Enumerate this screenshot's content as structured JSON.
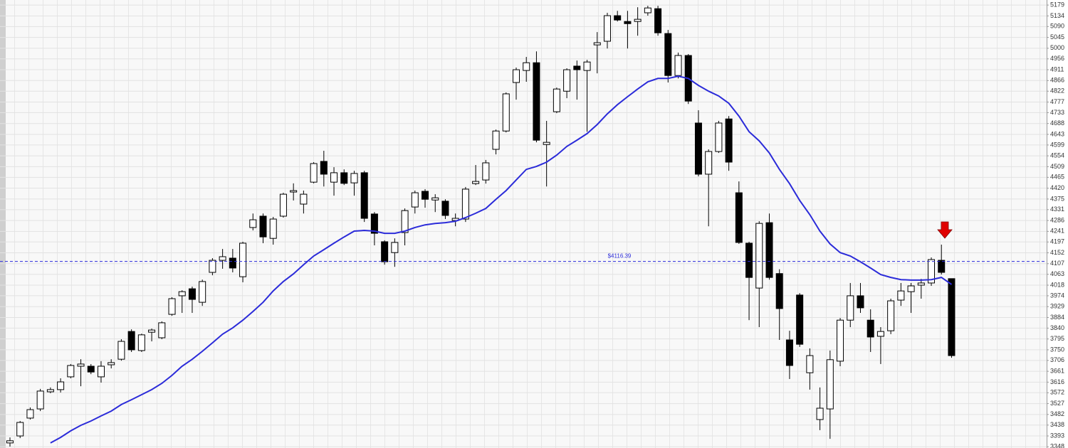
{
  "chart_data": {
    "type": "candlestick",
    "ylim": [
      3343,
      5200
    ],
    "yticks": [
      5179,
      5134,
      5090,
      5045,
      5000,
      4956,
      4911,
      4866,
      4822,
      4777,
      4733,
      4688,
      4643,
      4599,
      4554,
      4509,
      4465,
      4420,
      4375,
      4331,
      4286,
      4241,
      4197,
      4152,
      4107,
      4063,
      4018,
      3974,
      3929,
      3884,
      3840,
      3795,
      3750,
      3706,
      3661,
      3616,
      3572,
      3527,
      3482,
      3438,
      3393,
      3348
    ],
    "grid": true,
    "up_color": "#ffffff",
    "down_color": "#000000",
    "ma_color": "#2b2bd9",
    "open": [
      3364,
      3393,
      3467,
      3505,
      3576,
      3585,
      3638,
      3682,
      3682,
      3638,
      3688,
      3711,
      3826,
      3747,
      3823,
      3800,
      3897,
      3974,
      4003,
      3947,
      4071,
      4121,
      4130,
      4053,
      4257,
      4304,
      4212,
      4304,
      4404,
      4354,
      4445,
      4531,
      4445,
      4484,
      4442,
      4484,
      4313,
      4198,
      4153,
      4236,
      4342,
      4407,
      4371,
      4366,
      4286,
      4292,
      4439,
      4454,
      4581,
      4657,
      4858,
      4908,
      4940,
      4601,
      4737,
      4822,
      4926,
      4908,
      5014,
      5029,
      5135,
      5111,
      5111,
      5147,
      5164,
      5061,
      4887,
      4970,
      4690,
      4478,
      4572,
      4707,
      4401,
      4192,
      4006,
      4277,
      4066,
      3791,
      3977,
      3655,
      3461,
      3505,
      3703,
      3873,
      3974,
      3873,
      3806,
      3829,
      3956,
      3991,
      4018,
      4027,
      4121,
      4045
    ],
    "high": [
      3387,
      3455,
      3511,
      3588,
      3594,
      3632,
      3691,
      3711,
      3691,
      3703,
      3711,
      3794,
      3835,
      3817,
      3838,
      3868,
      3968,
      3997,
      4012,
      4041,
      4130,
      4168,
      4168,
      4198,
      4315,
      4315,
      4301,
      4401,
      4440,
      4410,
      4528,
      4575,
      4507,
      4498,
      4492,
      4492,
      4321,
      4204,
      4212,
      4336,
      4410,
      4416,
      4395,
      4374,
      4315,
      4425,
      4516,
      4537,
      4663,
      4817,
      4920,
      4964,
      4987,
      4699,
      4837,
      4917,
      4949,
      4952,
      5067,
      5147,
      5155,
      5155,
      5170,
      5176,
      5176,
      5076,
      4982,
      4976,
      4743,
      4581,
      4699,
      4719,
      4448,
      4198,
      4283,
      4315,
      4084,
      3829,
      3985,
      3756,
      3594,
      3747,
      3882,
      4027,
      4027,
      3918,
      3844,
      3962,
      4027,
      4027,
      4044,
      4133,
      4186,
      4045
    ],
    "low": [
      3349,
      3384,
      3461,
      3496,
      3570,
      3573,
      3632,
      3599,
      3649,
      3614,
      3673,
      3705,
      3741,
      3741,
      3785,
      3794,
      3891,
      3903,
      3903,
      3932,
      4059,
      4086,
      4071,
      4030,
      4245,
      4192,
      4186,
      4298,
      4369,
      4315,
      4440,
      4427,
      4389,
      4433,
      4389,
      4280,
      4183,
      4103,
      4094,
      4183,
      4315,
      4339,
      4321,
      4292,
      4262,
      4280,
      4433,
      4439,
      4560,
      4651,
      4787,
      4861,
      4610,
      4427,
      4731,
      4793,
      4787,
      4654,
      4896,
      4999,
      5111,
      4999,
      5052,
      5135,
      5052,
      4858,
      4875,
      4769,
      4469,
      4262,
      4566,
      4492,
      4189,
      3873,
      3844,
      4041,
      3791,
      3629,
      3762,
      3585,
      3417,
      3381,
      3682,
      3844,
      3903,
      3741,
      3691,
      3815,
      3932,
      3903,
      3962,
      4015,
      4062,
      3717
    ],
    "close": [
      3373,
      3449,
      3502,
      3579,
      3585,
      3617,
      3685,
      3691,
      3658,
      3682,
      3697,
      3785,
      3750,
      3812,
      3832,
      3862,
      3962,
      3991,
      3959,
      4033,
      4121,
      4136,
      4089,
      4192,
      4289,
      4218,
      4292,
      4395,
      4410,
      4395,
      4522,
      4478,
      4484,
      4440,
      4481,
      4295,
      4233,
      4115,
      4195,
      4327,
      4401,
      4374,
      4380,
      4307,
      4295,
      4416,
      4448,
      4525,
      4657,
      4811,
      4911,
      4940,
      4619,
      4610,
      4831,
      4911,
      4911,
      4943,
      5023,
      5135,
      5117,
      5102,
      5120,
      5167,
      5064,
      4887,
      4970,
      4781,
      4478,
      4572,
      4690,
      4528,
      4195,
      4050,
      4274,
      4050,
      3921,
      3685,
      3773,
      3726,
      3508,
      3709,
      3873,
      3974,
      3924,
      3803,
      3826,
      3953,
      3994,
      4015,
      4027,
      4124,
      4071,
      3726
    ],
    "ma": [
      null,
      null,
      null,
      null,
      3364,
      3387,
      3414,
      3437,
      3455,
      3476,
      3496,
      3523,
      3543,
      3564,
      3585,
      3611,
      3644,
      3682,
      3711,
      3744,
      3779,
      3815,
      3841,
      3873,
      3909,
      3947,
      3994,
      4033,
      4065,
      4103,
      4139,
      4165,
      4192,
      4218,
      4242,
      4245,
      4242,
      4233,
      4233,
      4242,
      4257,
      4268,
      4274,
      4277,
      4283,
      4298,
      4316,
      4336,
      4374,
      4410,
      4454,
      4498,
      4510,
      4528,
      4557,
      4593,
      4619,
      4646,
      4684,
      4728,
      4766,
      4799,
      4831,
      4861,
      4875,
      4875,
      4884,
      4875,
      4846,
      4822,
      4802,
      4772,
      4719,
      4654,
      4616,
      4566,
      4498,
      4439,
      4369,
      4310,
      4242,
      4189,
      4153,
      4139,
      4115,
      4089,
      4062,
      4050,
      4041,
      4039,
      4039,
      4041,
      4050,
      4021
    ],
    "price_line": {
      "value": 4116.39,
      "label": "$4116.39"
    }
  }
}
